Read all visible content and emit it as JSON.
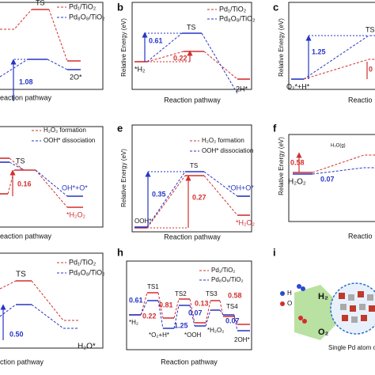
{
  "panels": {
    "a": {
      "legend": [
        "Pd₁/TiO₂",
        "Pd₈O₈/TiO₂"
      ],
      "ts": "TS",
      "state": "2O*",
      "value": "1.08",
      "xlabel": "eaction pathway"
    },
    "b": {
      "letter": "b",
      "ylabel": "Relative Energy (eV)",
      "legend": [
        "Pd₁/TiO₂",
        "Pd₈O₈/TiO₂"
      ],
      "ts": "TS",
      "start": "*H₂",
      "end": "2H*",
      "values": [
        "0.61",
        "0.22"
      ],
      "xlabel": "Reaction pathway"
    },
    "c": {
      "letter": "c",
      "ylabel": "Relative Energy (eV)",
      "ts": "TS",
      "start": "O₂*+H*",
      "values": [
        "1.25",
        "0"
      ],
      "xlabel": "Reactio"
    },
    "d": {
      "legend": [
        "H₂O₂ formation",
        "OOH* dissociation"
      ],
      "ts": "TS",
      "states": [
        "OH*+O*",
        "*H₂O₂"
      ],
      "value": "0.16",
      "xlabel": "eaction pathway"
    },
    "e": {
      "letter": "e",
      "ylabel": "Relative Energy (eV)",
      "legend": [
        "H₂O₂ formation",
        "OOH* dissociation"
      ],
      "ts": "TS",
      "states": [
        "OOH*",
        "*OH+O*",
        "*H₂O₂"
      ],
      "values": [
        "0.35",
        "0.27"
      ],
      "xlabel": "Reaction pathway"
    },
    "f": {
      "letter": "f",
      "ylabel": "Relative Energy (eV)",
      "values": [
        "0.58",
        "0.07"
      ],
      "states": [
        "H₂O₂",
        "H₂O(g)"
      ],
      "xlabel": "Reactio"
    },
    "g": {
      "legend": [
        "Pd₁/TiO₂",
        "Pd₈O₈/TiO₂"
      ],
      "ts": "TS",
      "value": "0.50",
      "state": "H₂O*",
      "xlabel": "ction pathway"
    },
    "h": {
      "letter": "h",
      "legend": [
        "Pd₁/TiO₂",
        "Pd₈O₈/TiO₂"
      ],
      "ts": [
        "TS1",
        "TS2",
        "TS3",
        "TS4"
      ],
      "values": [
        "0.61",
        "0.22",
        "0.81",
        "1.25",
        "0.13",
        "0.07",
        "0.58",
        "0.07"
      ],
      "states": [
        "*H₂",
        "*O₂+H*",
        "*OOH",
        "*H₂O₂",
        "2OH*"
      ],
      "xlabel": "Reaction pathway"
    },
    "i": {
      "letter": "i",
      "atoms": [
        "H",
        "O"
      ],
      "gases": [
        "H₂",
        "O₂"
      ],
      "caption": "Single Pd atom on"
    }
  }
}
